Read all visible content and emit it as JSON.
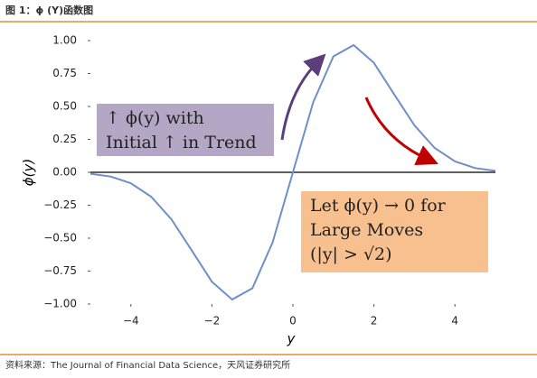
{
  "header": "图 1：ϕ (Y)函数图",
  "source": "资料来源：The Journal of Financial Data Science，天风证券研究所",
  "chart_data": {
    "type": "line",
    "xlabel": "y",
    "ylabel": "ϕ(y)",
    "x": [
      -5,
      -4.5,
      -4,
      -3.5,
      -3,
      -2.5,
      -2,
      -1.5,
      -1,
      -0.5,
      0,
      0.5,
      1,
      1.5,
      2,
      2.5,
      3,
      3.5,
      4,
      4.5,
      5
    ],
    "series": [
      {
        "color": "#6f8fc6",
        "values": [
          -0.011,
          -0.032,
          -0.083,
          -0.185,
          -0.357,
          -0.592,
          -0.831,
          -0.966,
          -0.88,
          -0.531,
          0,
          0.531,
          0.88,
          0.966,
          0.831,
          0.592,
          0.357,
          0.185,
          0.083,
          0.032,
          0.011
        ]
      }
    ],
    "xlim": [
      -5,
      5
    ],
    "ylim": [
      -1,
      1
    ],
    "xticks": [
      {
        "value": -4,
        "label": "−4"
      },
      {
        "value": -2,
        "label": "−2"
      },
      0,
      2,
      4
    ],
    "yticks": [
      {
        "value": -1,
        "label": "−1.00"
      },
      {
        "value": -0.75,
        "label": "−0.75"
      },
      {
        "value": -0.5,
        "label": "−0.50"
      },
      {
        "value": -0.25,
        "label": "−0.25"
      },
      {
        "value": 0,
        "label": "0.00"
      },
      {
        "value": 0.25,
        "label": "0.25"
      },
      {
        "value": 0.5,
        "label": "0.50"
      },
      {
        "value": 0.75,
        "label": "0.75"
      },
      {
        "value": 1,
        "label": "1.00"
      }
    ],
    "annotations": [
      {
        "lines": [
          "↑ ϕ(y) with",
          "Initial ↑ in Trend"
        ],
        "color": "#b4a7c6"
      },
      {
        "lines": [
          "Let ϕ(y) → 0 for",
          "Large Moves",
          "(|y| > √2)"
        ],
        "color": "#f8c08f"
      }
    ]
  }
}
